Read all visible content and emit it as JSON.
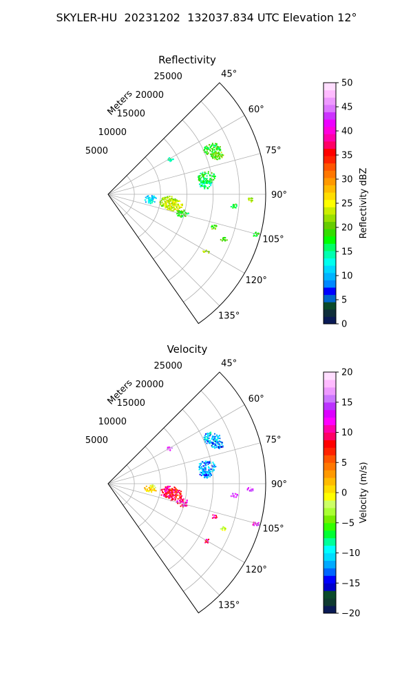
{
  "figure": {
    "title": "SKYLER-HU  20231202  132037.834 UTC Elevation 12°"
  },
  "chart_data": [
    {
      "type": "heatmap",
      "projection": "polar-sector",
      "title": "Reflectivity",
      "rlabel": "Meters",
      "r_ticks": [
        5000,
        10000,
        15000,
        20000,
        25000
      ],
      "r_max": 30000,
      "theta_ticks": [
        "45°",
        "60°",
        "75°",
        "90°",
        "105°",
        "120°",
        "135°"
      ],
      "theta_range": [
        45,
        145
      ],
      "grid": true,
      "colorbar": {
        "label": "Reflectivity dBZ",
        "range": [
          0,
          50
        ],
        "ticks": [
          "0",
          "5",
          "10",
          "15",
          "20",
          "25",
          "30",
          "35",
          "40",
          "45",
          "50"
        ],
        "colors": [
          "#0a1a55",
          "#0f2e3a",
          "#0a4a2a",
          "#0066cc",
          "#0000ff",
          "#0088ff",
          "#00b4ff",
          "#00d8ff",
          "#00ffee",
          "#00ffb0",
          "#00ff66",
          "#00ff00",
          "#33dd00",
          "#66cc00",
          "#99e000",
          "#ccee00",
          "#ffff00",
          "#ffdd00",
          "#ffbb00",
          "#ff9900",
          "#ff7700",
          "#ff5500",
          "#ff2200",
          "#ff0000",
          "#ff0066",
          "#ff00aa",
          "#ff00dd",
          "#ee00ff",
          "#cc33ff",
          "#dd77ff",
          "#ee99ff",
          "#ffbbff",
          "#ffddff"
        ]
      },
      "echoes": [
        {
          "theta": 66,
          "r": 21500,
          "value": 18,
          "size": "large"
        },
        {
          "theta": 70,
          "r": 22000,
          "value": 20,
          "size": "medium"
        },
        {
          "theta": 80,
          "r": 19000,
          "value": 17,
          "size": "large"
        },
        {
          "theta": 84,
          "r": 18500,
          "value": 15,
          "size": "medium"
        },
        {
          "theta": 60,
          "r": 13500,
          "value": 14,
          "size": "small"
        },
        {
          "theta": 97,
          "r": 11500,
          "value": 22,
          "size": "large"
        },
        {
          "theta": 99,
          "r": 12500,
          "value": 24,
          "size": "large"
        },
        {
          "theta": 96,
          "r": 8000,
          "value": 12,
          "size": "medium"
        },
        {
          "theta": 104,
          "r": 14500,
          "value": 18,
          "size": "medium"
        },
        {
          "theta": 111,
          "r": 23500,
          "value": 20,
          "size": "small"
        },
        {
          "theta": 95,
          "r": 24000,
          "value": 18,
          "size": "small"
        },
        {
          "theta": 92,
          "r": 27000,
          "value": 22,
          "size": "small"
        },
        {
          "theta": 120,
          "r": 21500,
          "value": 22,
          "size": "small"
        },
        {
          "theta": 105,
          "r": 29000,
          "value": 18,
          "size": "small"
        },
        {
          "theta": 107,
          "r": 21000,
          "value": 20,
          "size": "small"
        }
      ]
    },
    {
      "type": "heatmap",
      "projection": "polar-sector",
      "title": "Velocity",
      "rlabel": "Meters",
      "r_ticks": [
        5000,
        10000,
        15000,
        20000,
        25000
      ],
      "r_max": 30000,
      "theta_ticks": [
        "45°",
        "60°",
        "75°",
        "90°",
        "105°",
        "120°",
        "135°"
      ],
      "theta_range": [
        45,
        145
      ],
      "grid": true,
      "colorbar": {
        "label": "Velocity (m/s)",
        "range": [
          -20,
          20
        ],
        "ticks": [
          "−20",
          "−15",
          "−10",
          "−5",
          "0",
          "5",
          "10",
          "15",
          "20"
        ],
        "colors": [
          "#0a1a55",
          "#0f3a30",
          "#0a4a2a",
          "#0000cc",
          "#0000ff",
          "#0066ff",
          "#00aaff",
          "#00ddff",
          "#00ffff",
          "#00ff99",
          "#00ff33",
          "#33ff00",
          "#77ee00",
          "#aaff33",
          "#ccff66",
          "#ffff00",
          "#ffdd00",
          "#ffbb00",
          "#ff9900",
          "#ff7700",
          "#ff5500",
          "#ff2200",
          "#ff0000",
          "#ff0066",
          "#ff00aa",
          "#ff00ff",
          "#dd00ff",
          "#bb33ff",
          "#cc77ff",
          "#ee99ff",
          "#ffbbff",
          "#ffddff"
        ]
      },
      "echoes": [
        {
          "theta": 66,
          "r": 21500,
          "value": -11,
          "size": "large"
        },
        {
          "theta": 70,
          "r": 22000,
          "value": -13,
          "size": "medium"
        },
        {
          "theta": 80,
          "r": 19000,
          "value": -12,
          "size": "large"
        },
        {
          "theta": 84,
          "r": 18500,
          "value": -12,
          "size": "medium"
        },
        {
          "theta": 60,
          "r": 13500,
          "value": 15,
          "size": "small"
        },
        {
          "theta": 97,
          "r": 11500,
          "value": 10,
          "size": "large"
        },
        {
          "theta": 99,
          "r": 12500,
          "value": 8,
          "size": "large"
        },
        {
          "theta": 96,
          "r": 8000,
          "value": 1,
          "size": "medium"
        },
        {
          "theta": 104,
          "r": 14500,
          "value": 10,
          "size": "medium"
        },
        {
          "theta": 111,
          "r": 23500,
          "value": -3,
          "size": "small"
        },
        {
          "theta": 95,
          "r": 24000,
          "value": 14,
          "size": "small"
        },
        {
          "theta": 92,
          "r": 27000,
          "value": 15,
          "size": "small"
        },
        {
          "theta": 120,
          "r": 21500,
          "value": 10,
          "size": "small"
        },
        {
          "theta": 105,
          "r": 29000,
          "value": 12,
          "size": "small"
        },
        {
          "theta": 107,
          "r": 21000,
          "value": 9,
          "size": "small"
        }
      ]
    }
  ]
}
